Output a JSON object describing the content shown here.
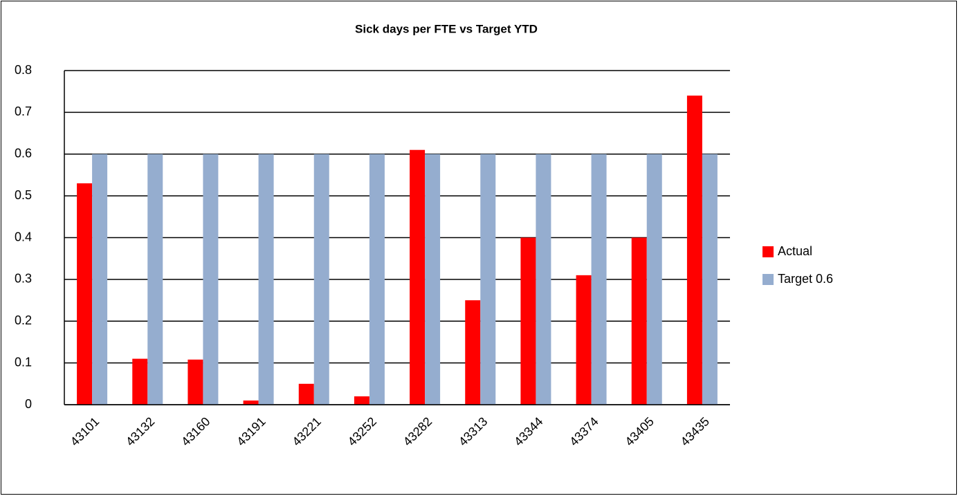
{
  "chart_data": {
    "type": "bar",
    "title": "Sick days per FTE vs Target YTD",
    "categories": [
      "43101",
      "43132",
      "43160",
      "43191",
      "43221",
      "43252",
      "43282",
      "43313",
      "43344",
      "43374",
      "43405",
      "43435"
    ],
    "series": [
      {
        "name": "Actual",
        "color": "#ff0000",
        "values": [
          0.53,
          0.11,
          0.108,
          0.01,
          0.05,
          0.02,
          0.61,
          0.25,
          0.4,
          0.31,
          0.4,
          0.74
        ]
      },
      {
        "name": "Target 0.6",
        "color": "#95adcf",
        "values": [
          0.6,
          0.6,
          0.6,
          0.6,
          0.6,
          0.6,
          0.6,
          0.6,
          0.6,
          0.6,
          0.6,
          0.6
        ]
      }
    ],
    "ylim": [
      0,
      0.8
    ],
    "yticks": [
      0,
      0.1,
      0.2,
      0.3,
      0.4,
      0.5,
      0.6,
      0.7,
      0.8
    ],
    "grid": true,
    "legend": "right"
  }
}
